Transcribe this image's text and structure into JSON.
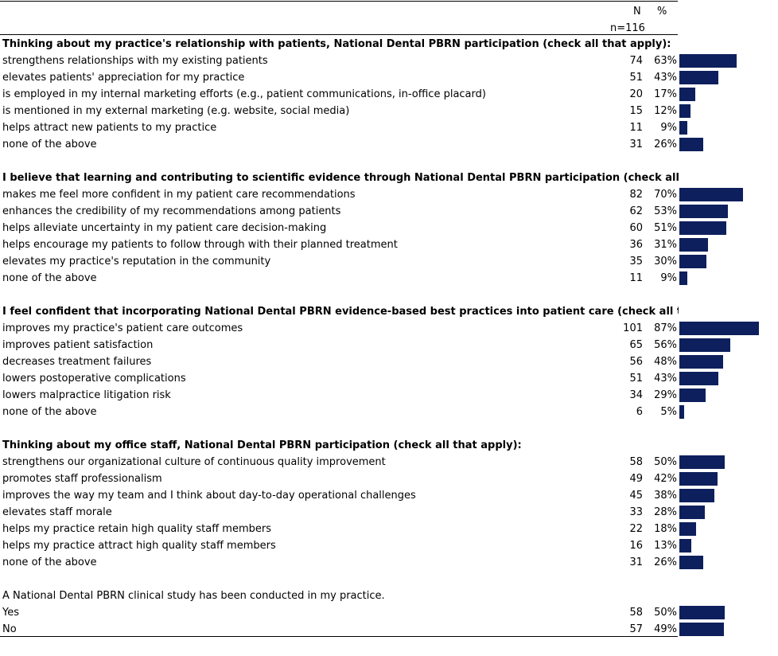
{
  "header": {
    "n_label": "N",
    "pct_label": "%",
    "sample": "n=116"
  },
  "bar_color": "#0d1f5c",
  "max_pct": 87,
  "sections": [
    {
      "question": "Thinking about my practice's relationship with patients, National Dental PBRN participation (check all that apply):",
      "items": [
        {
          "label": "strengthens relationships with my existing patients",
          "n": "74",
          "pct": "63%",
          "value": 63
        },
        {
          "label": "elevates patients' appreciation for my practice",
          "n": "51",
          "pct": "43%",
          "value": 43
        },
        {
          "label": "is employed in my internal marketing efforts (e.g., patient communications, in-office placard)",
          "n": "20",
          "pct": "17%",
          "value": 17
        },
        {
          "label": "is mentioned in my external marketing (e.g. website, social media)",
          "n": "15",
          "pct": "12%",
          "value": 12
        },
        {
          "label": "helps attract new patients to my practice",
          "n": "11",
          "pct": "9%",
          "value": 9
        },
        {
          "label": "none of the above",
          "n": "31",
          "pct": "26%",
          "value": 26
        }
      ]
    },
    {
      "question": "I believe that learning and contributing to scientific evidence through National Dental PBRN participation  (check all that ap",
      "items": [
        {
          "label": "makes me feel more confident in my patient care recommendations",
          "n": "82",
          "pct": "70%",
          "value": 70
        },
        {
          "label": "enhances the credibility of my recommendations among patients",
          "n": "62",
          "pct": "53%",
          "value": 53
        },
        {
          "label": "helps alleviate uncertainty in my patient care decision-making",
          "n": "60",
          "pct": "51%",
          "value": 51
        },
        {
          "label": "helps encourage my patients to follow through with their planned treatment",
          "n": "36",
          "pct": "31%",
          "value": 31
        },
        {
          "label": "elevates my practice's reputation in the community",
          "n": "35",
          "pct": "30%",
          "value": 30
        },
        {
          "label": "none of the above",
          "n": "11",
          "pct": "9%",
          "value": 9
        }
      ]
    },
    {
      "question": "I feel confident that incorporating National Dental PBRN evidence-based best practices into patient care (check all that appl",
      "items": [
        {
          "label": "improves my practice's patient care outcomes",
          "n": "101",
          "pct": "87%",
          "value": 87
        },
        {
          "label": "improves patient satisfaction",
          "n": "65",
          "pct": "56%",
          "value": 56
        },
        {
          "label": "decreases treatment failures",
          "n": "56",
          "pct": "48%",
          "value": 48
        },
        {
          "label": "lowers postoperative complications",
          "n": "51",
          "pct": "43%",
          "value": 43
        },
        {
          "label": "lowers malpractice litigation risk",
          "n": "34",
          "pct": "29%",
          "value": 29
        },
        {
          "label": "none of the above",
          "n": "6",
          "pct": "5%",
          "value": 5
        }
      ]
    },
    {
      "question": "Thinking about my office staff, National Dental PBRN participation (check all that apply):",
      "items": [
        {
          "label": "strengthens our organizational culture of continuous quality improvement",
          "n": "58",
          "pct": "50%",
          "value": 50
        },
        {
          "label": "promotes staff professionalism",
          "n": "49",
          "pct": "42%",
          "value": 42
        },
        {
          "label": "improves the way my team and I think about day-to-day operational challenges",
          "n": "45",
          "pct": "38%",
          "value": 38
        },
        {
          "label": "elevates staff morale",
          "n": "33",
          "pct": "28%",
          "value": 28
        },
        {
          "label": "helps my practice retain high quality staff members",
          "n": "22",
          "pct": "18%",
          "value": 18
        },
        {
          "label": "helps my practice attract high quality staff members",
          "n": "16",
          "pct": "13%",
          "value": 13
        },
        {
          "label": "none of the above",
          "n": "31",
          "pct": "26%",
          "value": 26
        }
      ]
    },
    {
      "question": "A National Dental PBRN clinical study has been conducted in my practice.",
      "plain_question": true,
      "items": [
        {
          "label": "Yes",
          "n": "58",
          "pct": "50%",
          "value": 50
        },
        {
          "label": "No",
          "n": "57",
          "pct": "49%",
          "value": 49
        }
      ]
    }
  ]
}
